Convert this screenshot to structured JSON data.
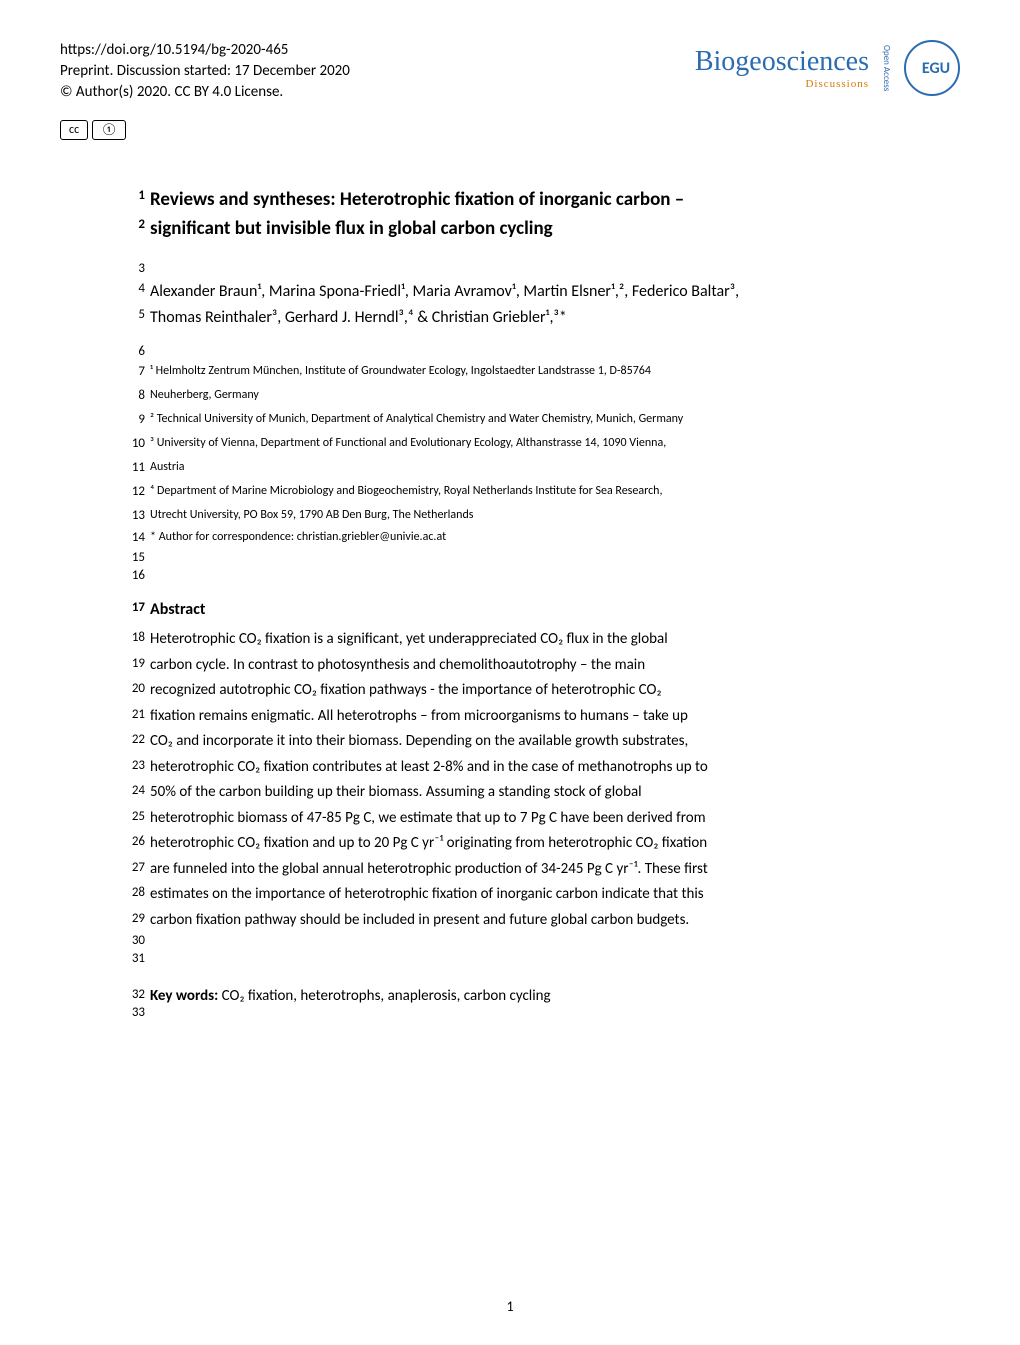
{
  "header": {
    "doi": "https://doi.org/10.5194/bg-2020-465",
    "preprint_line": "Preprint. Discussion started: 17 December 2020",
    "copyright_line": "© Author(s) 2020. CC BY 4.0 License.",
    "journal_name": "Biogeosciences",
    "journal_subtitle": "Discussions",
    "open_access": "Open Access",
    "publisher_abbr": "EGU",
    "cc_badge_1": "cc",
    "cc_badge_2": "①"
  },
  "title": {
    "line1": "Reviews and syntheses: Heterotrophic fixation of inorganic carbon –",
    "line2": "significant but invisible flux in global carbon cycling"
  },
  "authors": {
    "line1": "Alexander Braun¹, Marina Spona-Friedl¹, Maria Avramov¹, Martin Elsner¹,², Federico Baltar³,",
    "line2": "Thomas Reinthaler³, Gerhard J. Herndl³,⁴ & Christian Griebler¹,³*"
  },
  "affiliations": [
    {
      "ln": "7",
      "text_a": "¹ Helmholtz Zentrum München, Institute of Groundwater Ecology, Ingolstaedter Landstrasse 1, D-85764"
    },
    {
      "ln": "8",
      "text_a": "Neuherberg, Germany"
    },
    {
      "ln": "9",
      "text_a": "² Technical University of Munich, Department of Analytical Chemistry and Water Chemistry, Munich, Germany"
    },
    {
      "ln": "10",
      "text_a": "³ University of Vienna, Department of Functional and Evolutionary Ecology, Althanstrasse 14, 1090 Vienna,"
    },
    {
      "ln": "11",
      "text_a": "Austria"
    },
    {
      "ln": "12",
      "text_a": "⁴ Department of Marine Microbiology and Biogeochemistry, Royal Netherlands Institute for Sea Research,"
    },
    {
      "ln": "13",
      "text_a": "Utrecht University, PO Box 59, 1790 AB Den Burg, The Netherlands"
    }
  ],
  "correspondence": {
    "ln": "14",
    "text": "* Author for correspondence: christian.griebler@univie.ac.at"
  },
  "abstract": {
    "heading": "Abstract",
    "heading_ln": "17",
    "lines": [
      {
        "ln": "18",
        "text": "Heterotrophic CO₂ fixation is a significant, yet underappreciated CO₂ flux in the global"
      },
      {
        "ln": "19",
        "text": "carbon cycle. In contrast to photosynthesis and chemolithoautotrophy – the main"
      },
      {
        "ln": "20",
        "text": "recognized autotrophic CO₂ fixation pathways - the importance of heterotrophic CO₂"
      },
      {
        "ln": "21",
        "text": "fixation remains enigmatic. All heterotrophs – from microorganisms to humans – take up"
      },
      {
        "ln": "22",
        "text": "CO₂ and incorporate it into their biomass. Depending on the available growth substrates,"
      },
      {
        "ln": "23",
        "text": "heterotrophic CO₂ fixation contributes at least 2-8% and in the case of methanotrophs up to"
      },
      {
        "ln": "24",
        "text": "50% of the carbon building up their biomass. Assuming a standing stock of global"
      },
      {
        "ln": "25",
        "text": "heterotrophic biomass of 47-85 Pg C, we estimate that up to 7 Pg C have been derived from"
      },
      {
        "ln": "26",
        "text": "heterotrophic CO₂ fixation and up to 20 Pg C yr⁻¹ originating from heterotrophic CO₂ fixation"
      },
      {
        "ln": "27",
        "text": "are funneled into the global annual heterotrophic production of 34-245 Pg C yr⁻¹. These first"
      },
      {
        "ln": "28",
        "text": "estimates on the importance of heterotrophic fixation of inorganic carbon indicate that this"
      },
      {
        "ln": "29",
        "text": "carbon fixation pathway should be included in present and future global carbon budgets."
      }
    ]
  },
  "keywords": {
    "ln": "32",
    "label": "Key words: ",
    "text": "CO₂ fixation, heterotrophs, anaplerosis, carbon cycling"
  },
  "line_numbers": {
    "ln1": "1",
    "ln2": "2",
    "ln3": "3",
    "ln4": "4",
    "ln5": "5",
    "ln6": "6",
    "ln15": "15",
    "ln16": "16",
    "ln30": "30",
    "ln31": "31",
    "ln33": "33"
  },
  "page_number": "1",
  "colors": {
    "text": "#000000",
    "journal_blue": "#2b6cb0",
    "journal_orange": "#d97706",
    "background": "#ffffff"
  },
  "typography": {
    "body_fontsize": 15,
    "title_fontsize": 19,
    "affiliation_fontsize": 12,
    "lineno_fontsize": 13
  }
}
